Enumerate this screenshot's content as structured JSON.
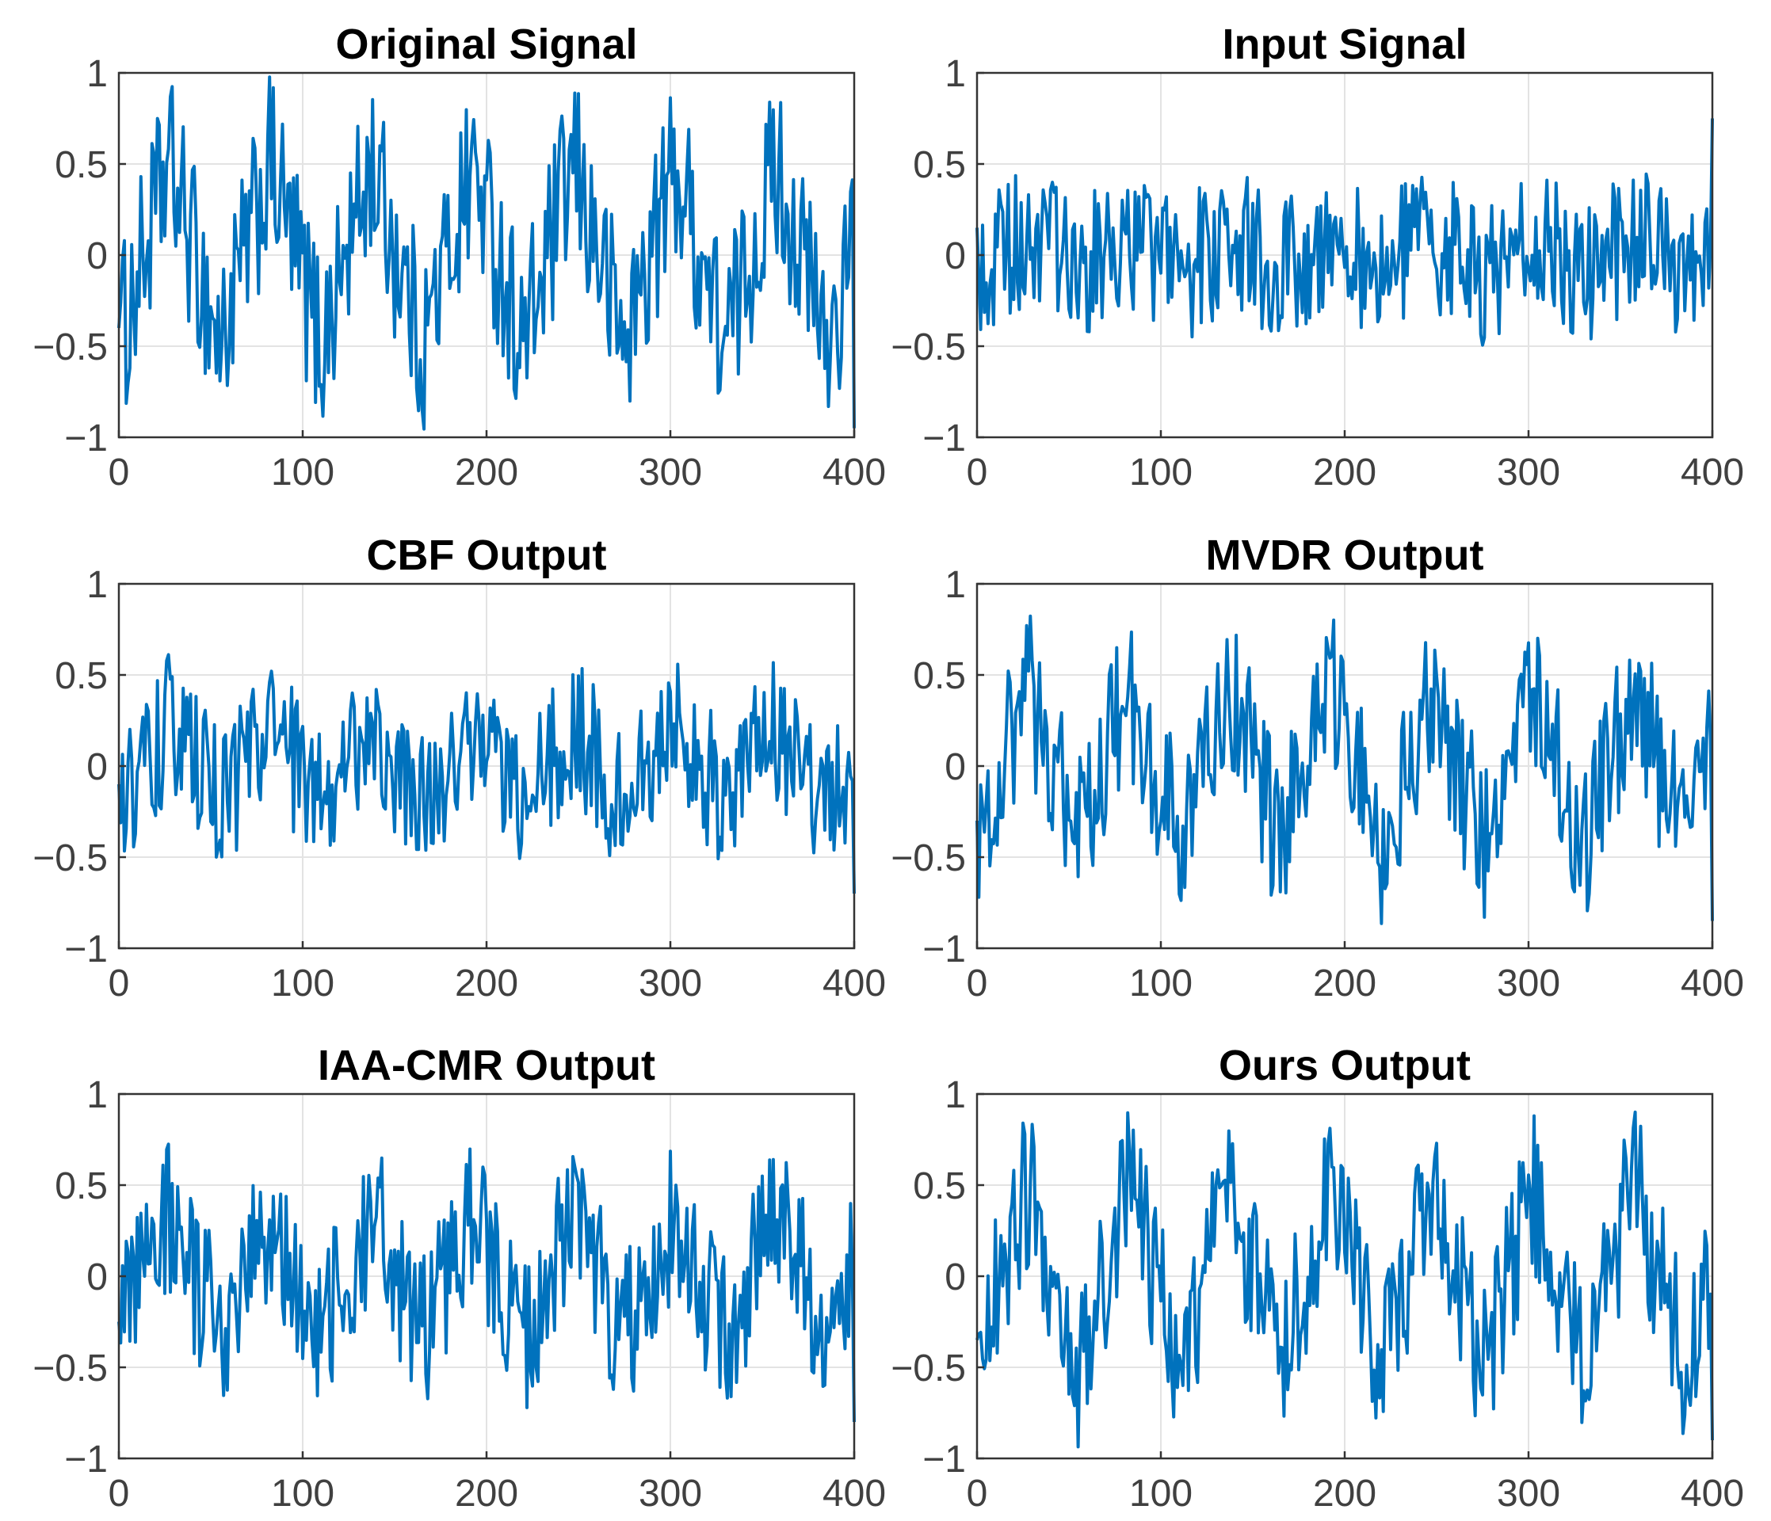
{
  "chart_data": [
    {
      "type": "line",
      "title": "Original Signal",
      "xlim": [
        0,
        400
      ],
      "ylim": [
        -1,
        1
      ],
      "xticks": [
        "0",
        "100",
        "200",
        "300",
        "400"
      ],
      "yticks": [
        "1",
        "0.5",
        "0",
        "−0.5",
        "−1"
      ],
      "grid": true,
      "line_color": "#0072BD",
      "signal": {
        "n_points": 401,
        "period": 55,
        "amplitude": 0.5,
        "noise_amplitude": 0.5,
        "phase_offset": 0,
        "y_start": -0.4,
        "y_end": -0.95
      }
    },
    {
      "type": "line",
      "title": "Input Signal",
      "xlim": [
        0,
        400
      ],
      "ylim": [
        -1,
        1
      ],
      "xticks": [
        "0",
        "100",
        "200",
        "300",
        "400"
      ],
      "yticks": [
        "1",
        "0.5",
        "0",
        "−0.5",
        "−1"
      ],
      "grid": true,
      "line_color": "#0072BD",
      "signal": {
        "n_points": 401,
        "period": 55,
        "amplitude": 0.1,
        "noise_amplitude": 0.4,
        "phase_offset": 0,
        "y_start": 0.15,
        "y_end": 0.75
      }
    },
    {
      "type": "line",
      "title": "CBF Output",
      "xlim": [
        0,
        400
      ],
      "ylim": [
        -1,
        1
      ],
      "xticks": [
        "0",
        "100",
        "200",
        "300",
        "400"
      ],
      "yticks": [
        "1",
        "0.5",
        "0",
        "−0.5",
        "−1"
      ],
      "grid": true,
      "line_color": "#0072BD",
      "signal": {
        "n_points": 401,
        "period": 55,
        "amplitude": 0.22,
        "noise_amplitude": 0.4,
        "phase_offset": 0,
        "y_start": -0.1,
        "y_end": -0.7
      }
    },
    {
      "type": "line",
      "title": "MVDR Output",
      "xlim": [
        0,
        400
      ],
      "ylim": [
        -1,
        1
      ],
      "xticks": [
        "0",
        "100",
        "200",
        "300",
        "400"
      ],
      "yticks": [
        "1",
        "0.5",
        "0",
        "−0.5",
        "−1"
      ],
      "grid": true,
      "line_color": "#0072BD",
      "signal": {
        "n_points": 401,
        "period": 55,
        "amplitude": 0.42,
        "noise_amplitude": 0.45,
        "phase_offset": 0,
        "y_start": -0.3,
        "y_end": -0.85
      }
    },
    {
      "type": "line",
      "title": "IAA-CMR Output",
      "xlim": [
        0,
        400
      ],
      "ylim": [
        -1,
        1
      ],
      "xticks": [
        "0",
        "100",
        "200",
        "300",
        "400"
      ],
      "yticks": [
        "1",
        "0.5",
        "0",
        "−0.5",
        "−1"
      ],
      "grid": true,
      "line_color": "#0072BD",
      "signal": {
        "n_points": 401,
        "period": 55,
        "amplitude": 0.35,
        "noise_amplitude": 0.45,
        "phase_offset": 0,
        "y_start": -0.25,
        "y_end": -0.8
      }
    },
    {
      "type": "line",
      "title": "Ours Output",
      "xlim": [
        0,
        400
      ],
      "ylim": [
        -1,
        1
      ],
      "xticks": [
        "0",
        "100",
        "200",
        "300",
        "400"
      ],
      "yticks": [
        "1",
        "0.5",
        "0",
        "−0.5",
        "−1"
      ],
      "grid": true,
      "line_color": "#0072BD",
      "signal": {
        "n_points": 401,
        "period": 55,
        "amplitude": 0.5,
        "noise_amplitude": 0.45,
        "phase_offset": 0,
        "y_start": -0.35,
        "y_end": -0.9
      }
    }
  ]
}
